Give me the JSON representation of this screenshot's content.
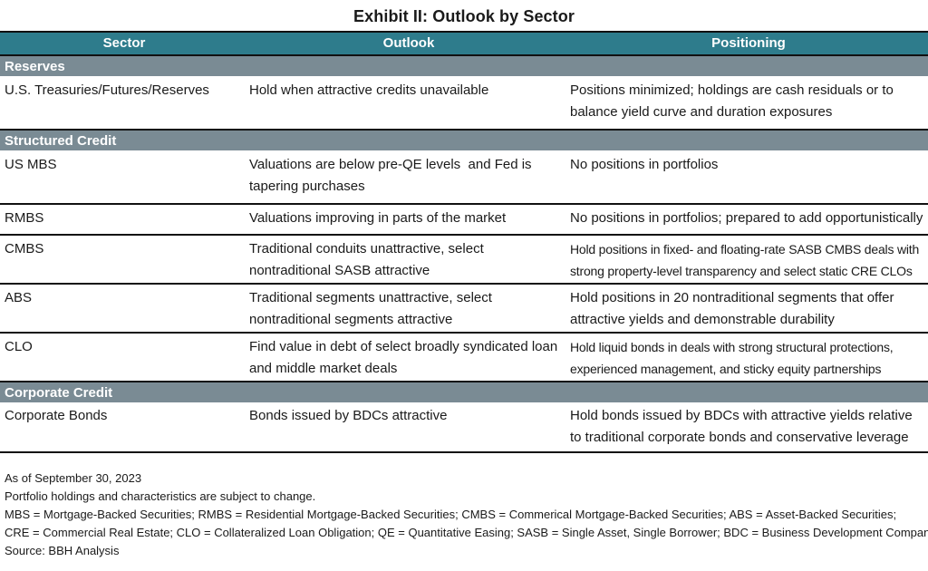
{
  "title": "Exhibit II: Outlook by Sector",
  "headers": {
    "sector": "Sector",
    "outlook": "Outlook",
    "positioning": "Positioning"
  },
  "sections": {
    "reserves": "Reserves",
    "structured": "Structured Credit",
    "corporate": "Corporate Credit"
  },
  "rows": {
    "treasuries": {
      "sector": "U.S. Treasuries/Futures/Reserves",
      "outlook": "Hold when attractive credits unavailable",
      "positioning_1": "Positions minimized; holdings are cash residuals or to",
      "positioning_2": "balance yield curve and duration exposures"
    },
    "usmbs": {
      "sector": "US MBS",
      "outlook_1": "Valuations are below pre-QE levels  and Fed is",
      "outlook_2": "tapering purchases",
      "positioning": "No positions in portfolios"
    },
    "rmbs": {
      "sector": "RMBS",
      "outlook": "Valuations improving in parts of the market",
      "positioning": "No positions in portfolios; prepared to add opportunistically"
    },
    "cmbs": {
      "sector": "CMBS",
      "outlook_1": "Traditional conduits unattractive, select",
      "outlook_2": "nontraditional SASB attractive",
      "positioning_1": "Hold positions in fixed- and floating-rate SASB CMBS deals with",
      "positioning_2": "strong property-level transparency and select static CRE CLOs"
    },
    "abs": {
      "sector": "ABS",
      "outlook_1": "Traditional segments unattractive, select",
      "outlook_2": "nontraditional segments attractive",
      "positioning_1": "Hold positions in 20 nontraditional segments that offer",
      "positioning_2": "attractive yields and demonstrable durability"
    },
    "clo": {
      "sector": "CLO",
      "outlook_1": "Find value in debt of select broadly syndicated loan",
      "outlook_2": "and middle market deals",
      "positioning_1": "Hold liquid bonds in deals with strong structural protections,",
      "positioning_2": "experienced management, and sticky equity partnerships"
    },
    "corporate_bonds": {
      "sector": "Corporate Bonds",
      "outlook": "Bonds issued by BDCs attractive",
      "positioning_1": "Hold bonds issued by BDCs with attractive yields relative",
      "positioning_2": "to traditional corporate bonds and conservative leverage"
    }
  },
  "notes": {
    "date": "As of September 30, 2023",
    "disclaimer": "Portfolio holdings and characteristics are subject to change.",
    "abbrev_1": "MBS = Mortgage-Backed Securities; RMBS = Residential Mortgage-Backed Securities; CMBS = Commerical Mortgage-Backed Securities; ABS = Asset-Backed Securities;",
    "abbrev_2": "CRE = Commercial Real Estate; CLO = Collateralized Loan Obligation; QE = Quantitative Easing; SASB = Single Asset, Single Borrower; BDC = Business Development Company",
    "source": "Source: BBH Analysis"
  },
  "colors": {
    "header_bg": "#2e7c8c",
    "section_bg": "#7a8b94",
    "rule": "#111111"
  }
}
